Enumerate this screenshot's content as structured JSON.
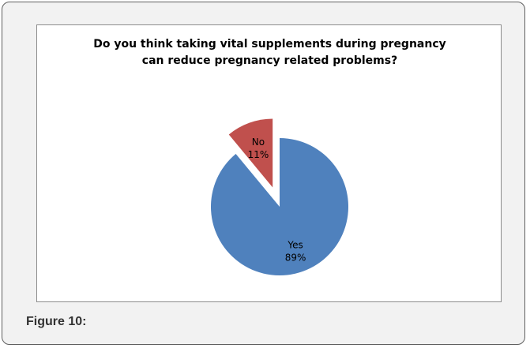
{
  "figure": {
    "caption": "Figure 10:"
  },
  "chart_data": {
    "type": "pie",
    "title_lines": [
      "Do you think taking vital supplements during pregnancy",
      "can reduce pregnancy related problems?"
    ],
    "slices": [
      {
        "category": "Yes",
        "value": 89,
        "label": "89%",
        "color": "#4f81bd",
        "exploded": false
      },
      {
        "category": "No",
        "value": 11,
        "label": "11%",
        "color": "#c0504d",
        "exploded": true
      }
    ],
    "legend": "none",
    "data_labels": "inside"
  }
}
